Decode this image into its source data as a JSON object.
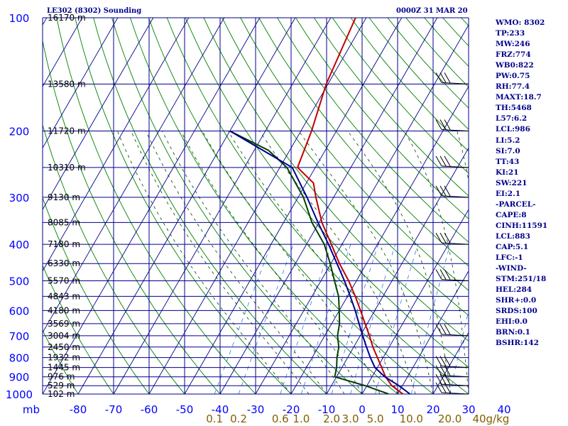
{
  "chart_data": {
    "type": "skew-t",
    "title_left": "LE302 (8302) Sounding",
    "title_right": "0000Z 31 MAR 20",
    "pressure_levels": [
      {
        "p": 100,
        "label": "100",
        "height": "16170 m"
      },
      {
        "p": 150,
        "label": "",
        "height": "13580 m"
      },
      {
        "p": 200,
        "label": "200",
        "height": "11720 m"
      },
      {
        "p": 250,
        "label": "",
        "height": "10310 m"
      },
      {
        "p": 300,
        "label": "300",
        "height": "9130 m"
      },
      {
        "p": 350,
        "label": "",
        "height": "8085 m"
      },
      {
        "p": 400,
        "label": "400",
        "height": "7180 m"
      },
      {
        "p": 450,
        "label": "",
        "height": "6330 m"
      },
      {
        "p": 500,
        "label": "500",
        "height": "5570 m"
      },
      {
        "p": 550,
        "label": "",
        "height": "4843 m"
      },
      {
        "p": 600,
        "label": "600",
        "height": "4180 m"
      },
      {
        "p": 650,
        "label": "",
        "height": "3569 m"
      },
      {
        "p": 700,
        "label": "700",
        "height": "3004 m"
      },
      {
        "p": 750,
        "label": "",
        "height": "2450 m"
      },
      {
        "p": 800,
        "label": "800",
        "height": "1932 m"
      },
      {
        "p": 850,
        "label": "",
        "height": "1445 m"
      },
      {
        "p": 900,
        "label": "900",
        "height": "976 m"
      },
      {
        "p": 950,
        "label": "",
        "height": "529 m"
      },
      {
        "p": 1000,
        "label": "1000",
        "height": "102 m"
      }
    ],
    "pressure_unit": "mb",
    "temperature_ticks": [
      "-80",
      "-70",
      "-60",
      "-50",
      "-40",
      "-30",
      "-20",
      "-10",
      "0",
      "10",
      "20",
      "30",
      "40"
    ],
    "temperature_range": [
      -80,
      40
    ],
    "mixing_ratio_labels": [
      "0.1",
      "0.2",
      "0.6",
      "1.0",
      "2.0",
      "3.0",
      "5.0",
      "10.0",
      "20.0",
      "40g/kg"
    ],
    "series": [
      {
        "role": "temperature",
        "color": "#c00000",
        "points": [
          [
            1000,
            11.5
          ],
          [
            950,
            7.0
          ],
          [
            900,
            3.8
          ],
          [
            850,
            1.2
          ],
          [
            800,
            -1.6
          ],
          [
            750,
            -4.6
          ],
          [
            700,
            -7.4
          ],
          [
            650,
            -10.6
          ],
          [
            600,
            -14.0
          ],
          [
            550,
            -17.8
          ],
          [
            500,
            -22.2
          ],
          [
            450,
            -27.6
          ],
          [
            400,
            -33.0
          ],
          [
            350,
            -39.2
          ],
          [
            300,
            -45.0
          ],
          [
            275,
            -48.0
          ],
          [
            250,
            -55.0
          ],
          [
            200,
            -57.0
          ],
          [
            150,
            -60.5
          ],
          [
            100,
            -63.0
          ]
        ]
      },
      {
        "role": "dewpoint",
        "color": "#004000",
        "points": [
          [
            1000,
            7.5
          ],
          [
            950,
            -0.5
          ],
          [
            900,
            -10.5
          ],
          [
            850,
            -11.5
          ],
          [
            800,
            -13.0
          ],
          [
            750,
            -14.2
          ],
          [
            700,
            -16.4
          ],
          [
            650,
            -17.8
          ],
          [
            600,
            -20.0
          ],
          [
            550,
            -22.5
          ],
          [
            500,
            -26.2
          ],
          [
            450,
            -30.2
          ],
          [
            400,
            -35.0
          ],
          [
            350,
            -42.0
          ],
          [
            300,
            -48.5
          ],
          [
            250,
            -58.0
          ],
          [
            225,
            -66.0
          ],
          [
            200,
            -80.0
          ]
        ]
      },
      {
        "role": "parcel",
        "color": "#00008b",
        "points": [
          [
            1000,
            13.5
          ],
          [
            950,
            9.0
          ],
          [
            900,
            3.6
          ],
          [
            850,
            -0.7
          ],
          [
            800,
            -3.6
          ],
          [
            750,
            -6.4
          ],
          [
            700,
            -9.3
          ],
          [
            650,
            -12.3
          ],
          [
            600,
            -15.5
          ],
          [
            550,
            -19.2
          ],
          [
            500,
            -23.4
          ],
          [
            450,
            -28.3
          ],
          [
            400,
            -33.8
          ],
          [
            350,
            -40.3
          ],
          [
            300,
            -47.5
          ],
          [
            250,
            -56.5
          ],
          [
            200,
            -80.0
          ]
        ]
      }
    ],
    "wind_barbs_p": [
      1000,
      950,
      900,
      850,
      700,
      500,
      400,
      300,
      250,
      200,
      150
    ]
  },
  "stats": [
    "WMO: 8302",
    "TP:233",
    "MW:246",
    "FRZ:774",
    "WB0:822",
    "PW:0.75",
    "RH:77.4",
    "MAXT:18.7",
    "TH:5468",
    "L57:6.2",
    "LCL:986",
    "LI:5.2",
    "SI:7.0",
    "TT:43",
    "KI:21",
    "SW:221",
    "EI:2.1",
    "-PARCEL-",
    "CAPE:8",
    "CINH:11591",
    "LCL:883",
    "CAP:5.1",
    "LFC:-1",
    "-WIND-",
    "STM:251/18",
    "HEL:284",
    "SHR+:0.0",
    "SRDS:100",
    "EHI:0.0",
    "BRN:0.1",
    "BSHR:142"
  ],
  "colors": {
    "grid": "#00008b",
    "dry_adiabat": "#008000",
    "moist_adiabat": "#004000",
    "mixing_ratio": "#2f7fd8",
    "mixing_label": "#806000",
    "axis_text": "#0000ff"
  }
}
